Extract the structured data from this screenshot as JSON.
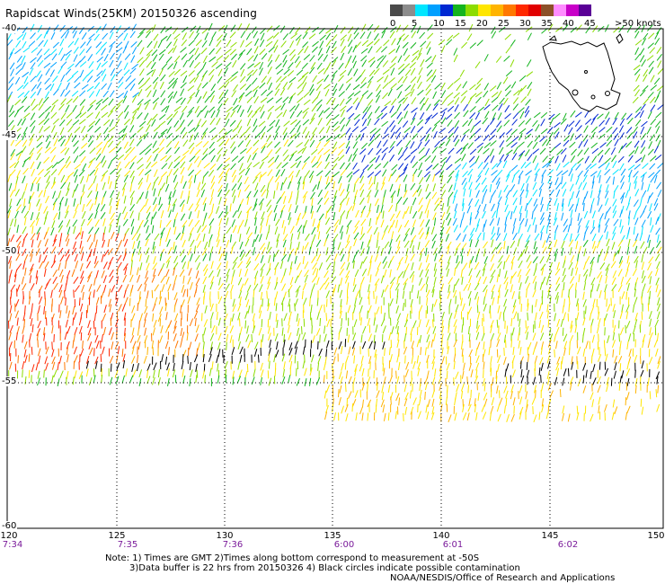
{
  "title": "Rapidscat Winds(25KM) 20150326 ascending",
  "legend": {
    "colors": [
      "#4a4a4a",
      "#8c8c8c",
      "#00e6ff",
      "#00a0ff",
      "#0028d2",
      "#14b41e",
      "#8cdc00",
      "#ffe600",
      "#ffb400",
      "#ff7800",
      "#ff2800",
      "#e10000",
      "#8c5028",
      "#ff8cff",
      "#c800c8",
      "#5a0096"
    ],
    "labels": [
      "0",
      "5",
      "10",
      "15",
      "20",
      "25",
      "30",
      "35",
      "40",
      "45",
      ">50 knots"
    ]
  },
  "lat_labels": [
    "-40",
    "-45",
    "-50",
    "-55",
    "-60"
  ],
  "lon_labels": [
    "120",
    "125",
    "130",
    "135",
    "140",
    "145",
    "150"
  ],
  "time_labels": [
    "7:34",
    "7:35",
    "7:36",
    "6:00",
    "6:01",
    "6:02"
  ],
  "notes": {
    "line1": "Note: 1) Times are GMT 2)Times along bottom correspond to measurement at -50S",
    "line2": "3)Data buffer is 22 hrs from 20150326 4) Black circles indicate possible contamination",
    "line3": "NOAA/NESDIS/Office of Research and Applications"
  }
}
